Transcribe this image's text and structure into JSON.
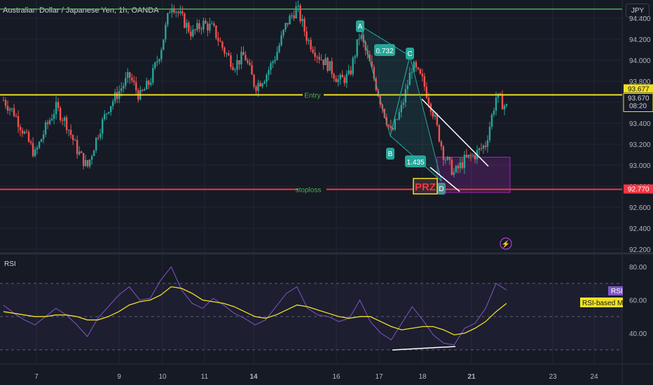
{
  "header": {
    "title": "Australian Dollar / Japanese Yen, 1h, OANDA",
    "currency_button": "JPY"
  },
  "colors": {
    "background": "#161a25",
    "up": "#26a69a",
    "down": "#ef5350",
    "entry_line": "#f0e024",
    "stoploss_line": "#f23645",
    "top_line": "#4caf50",
    "pattern": "#26a69a",
    "rsi": "#7e57c2",
    "rsi_ma": "#f0e024",
    "prz_box": "#9c27b0"
  },
  "chart_data": [
    {
      "type": "candlestick",
      "title": "Australian Dollar / Japanese Yen, 1h, OANDA",
      "x_tick_labels": [
        "7",
        "9",
        "10",
        "11",
        "14",
        "16",
        "17",
        "18",
        "21",
        "23",
        "24"
      ],
      "y_tick_labels": [
        "94.400",
        "94.200",
        "94.000",
        "93.800",
        "93.600",
        "93.400",
        "93.200",
        "93.000",
        "92.800",
        "92.600",
        "92.400",
        "92.200"
      ],
      "ylim": [
        92.2,
        94.65
      ],
      "price_labels": {
        "last_price": "93.677",
        "entry_price": "93.670",
        "countdown": "08:20",
        "stoploss_price": "92.770"
      },
      "levels": [
        {
          "name": "Entry",
          "price": 93.67
        },
        {
          "name": "stoploss",
          "price": 92.77
        },
        {
          "name": "",
          "price": 94.6
        }
      ],
      "harmonic_pattern": {
        "points": [
          {
            "label": "A",
            "price": 94.33
          },
          {
            "label": "B",
            "price": 93.28
          },
          {
            "label": "C",
            "price": 94.04
          },
          {
            "label": "D",
            "price": 92.85
          }
        ],
        "ratios": [
          "0.732",
          "1.435"
        ],
        "zone_label": "PRZ",
        "zone_price_range": [
          92.74,
          92.99
        ]
      },
      "approx_close_path": [
        93.62,
        93.5,
        93.3,
        93.1,
        93.35,
        93.55,
        93.4,
        93.15,
        92.98,
        93.3,
        93.55,
        93.7,
        93.85,
        93.65,
        93.8,
        94.1,
        94.55,
        94.4,
        94.25,
        94.35,
        94.3,
        94.1,
        93.95,
        94.05,
        93.75,
        93.85,
        94.05,
        94.35,
        94.5,
        94.2,
        94.05,
        93.95,
        93.8,
        93.85,
        94.25,
        93.95,
        93.6,
        93.3,
        93.55,
        93.95,
        93.8,
        93.5,
        93.1,
        92.92,
        93.05,
        93.1,
        93.2,
        93.65,
        93.55
      ]
    },
    {
      "type": "line",
      "title": "RSI",
      "y_tick_labels": [
        "80.00",
        "60.00",
        "40.00"
      ],
      "ylim": [
        20,
        85
      ],
      "series": [
        {
          "name": "RSI",
          "values": [
            57,
            52,
            48,
            45,
            50,
            55,
            51,
            45,
            38,
            49,
            56,
            63,
            68,
            60,
            61,
            72,
            80,
            66,
            58,
            55,
            61,
            57,
            52,
            49,
            45,
            48,
            56,
            64,
            68,
            55,
            51,
            50,
            47,
            49,
            60,
            47,
            40,
            36,
            46,
            56,
            48,
            39,
            34,
            33,
            43,
            46,
            55,
            70,
            66
          ]
        },
        {
          "name": "RSI-based MA",
          "values": [
            53,
            52,
            51,
            50,
            50,
            51,
            51,
            50,
            48,
            48,
            50,
            53,
            57,
            59,
            60,
            63,
            68,
            67,
            64,
            60,
            59,
            58,
            56,
            53,
            50,
            49,
            51,
            54,
            57,
            56,
            54,
            52,
            50,
            49,
            50,
            50,
            47,
            44,
            42,
            43,
            44,
            44,
            42,
            39,
            40,
            43,
            47,
            53,
            58
          ]
        }
      ],
      "dashed_levels": [
        70,
        50,
        30
      ]
    }
  ]
}
